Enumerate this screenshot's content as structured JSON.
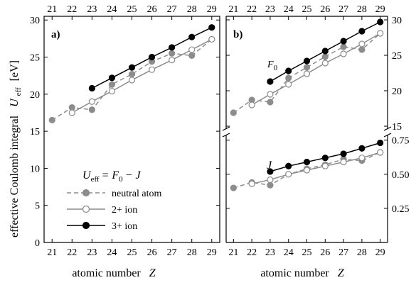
{
  "chart_data": {
    "type": "line",
    "ylabel": "effective Coulomb integral",
    "ylabel_symbol": "U",
    "ylabel_subscript": "eff",
    "ylabel_unit": "[eV]",
    "xlabel": "atomic number",
    "xlabel_symbol": "Z",
    "x_ticks": [
      21,
      22,
      23,
      24,
      25,
      26,
      27,
      28,
      29
    ],
    "legend": {
      "formula_U": "U",
      "formula_U_sub": "eff",
      "formula_eq": "= F",
      "formula_F_sub": "0",
      "formula_rest": "− J",
      "entries": [
        "neutral atom",
        "2+ ion",
        "3+ ion"
      ]
    },
    "panels": [
      {
        "label": "a)",
        "y_ticks": [
          0,
          5,
          10,
          15,
          20,
          25,
          30
        ],
        "ylim": [
          0,
          30.5
        ],
        "xlim": [
          20.6,
          29.4
        ],
        "series": [
          {
            "name": "neutral atom",
            "style": "dashed-gray-filled",
            "x": [
              21,
              22,
              23,
              24,
              25,
              26,
              27,
              28,
              29
            ],
            "y": [
              16.5,
              18.2,
              17.9,
              21.3,
              22.7,
              24.4,
              25.5,
              25.2,
              27.4
            ]
          },
          {
            "name": "2+ ion",
            "style": "solid-gray-open",
            "x": [
              22,
              23,
              24,
              25,
              26,
              27,
              28,
              29
            ],
            "y": [
              17.5,
              19.0,
              20.4,
              21.9,
              23.3,
              24.6,
              26.0,
              27.4
            ]
          },
          {
            "name": "3+ ion",
            "style": "solid-black-filled",
            "x": [
              23,
              24,
              25,
              26,
              27,
              28,
              29
            ],
            "y": [
              20.8,
              22.2,
              23.6,
              25.0,
              26.3,
              27.7,
              29.0
            ]
          }
        ]
      },
      {
        "label": "b)",
        "F_label": "F",
        "F_sub": "0",
        "J_label": "J",
        "upper_ticks": [
          15,
          20,
          25,
          30
        ],
        "upper_ylim": [
          14.6,
          30.5
        ],
        "lower_ticks": [
          0.25,
          0.5,
          0.75
        ],
        "lower_tick_labels": [
          "0.25",
          "0.50",
          "0.75"
        ],
        "lower_ylim": [
          0,
          0.79
        ],
        "xlim": [
          20.6,
          29.4
        ],
        "F_series": [
          {
            "name": "neutral atom",
            "style": "dashed-gray-filled",
            "x": [
              21,
              22,
              23,
              24,
              25,
              26,
              27,
              28,
              29
            ],
            "y": [
              16.9,
              18.7,
              18.4,
              21.8,
              23.3,
              24.8,
              26.2,
              25.8,
              28.1
            ]
          },
          {
            "name": "2+ ion",
            "style": "solid-gray-open",
            "x": [
              22,
              23,
              24,
              25,
              26,
              27,
              28,
              29
            ],
            "y": [
              18.0,
              19.5,
              20.9,
              22.4,
              23.9,
              25.2,
              26.6,
              28.1
            ]
          },
          {
            "name": "3+ ion",
            "style": "solid-black-filled",
            "x": [
              23,
              24,
              25,
              26,
              27,
              28,
              29
            ],
            "y": [
              21.3,
              22.8,
              24.2,
              25.6,
              27.0,
              28.4,
              29.7
            ]
          }
        ],
        "J_series": [
          {
            "name": "neutral atom",
            "style": "dashed-gray-filled",
            "x": [
              21,
              22,
              23,
              24,
              25,
              26,
              27,
              28,
              29
            ],
            "y": [
              0.4,
              0.44,
              0.42,
              0.5,
              0.54,
              0.57,
              0.61,
              0.6,
              0.66
            ]
          },
          {
            "name": "2+ ion",
            "style": "solid-gray-open",
            "x": [
              22,
              23,
              24,
              25,
              26,
              27,
              28,
              29
            ],
            "y": [
              0.43,
              0.46,
              0.5,
              0.53,
              0.56,
              0.59,
              0.62,
              0.66
            ]
          },
          {
            "name": "3+ ion",
            "style": "solid-black-filled",
            "x": [
              23,
              24,
              25,
              26,
              27,
              28,
              29
            ],
            "y": [
              0.52,
              0.56,
              0.59,
              0.62,
              0.65,
              0.69,
              0.73
            ]
          }
        ]
      }
    ]
  },
  "colors": {
    "neutral": "#8c8c8c",
    "ion2": "#8c8c8c",
    "ion3": "#000000",
    "axis": "#000000"
  }
}
